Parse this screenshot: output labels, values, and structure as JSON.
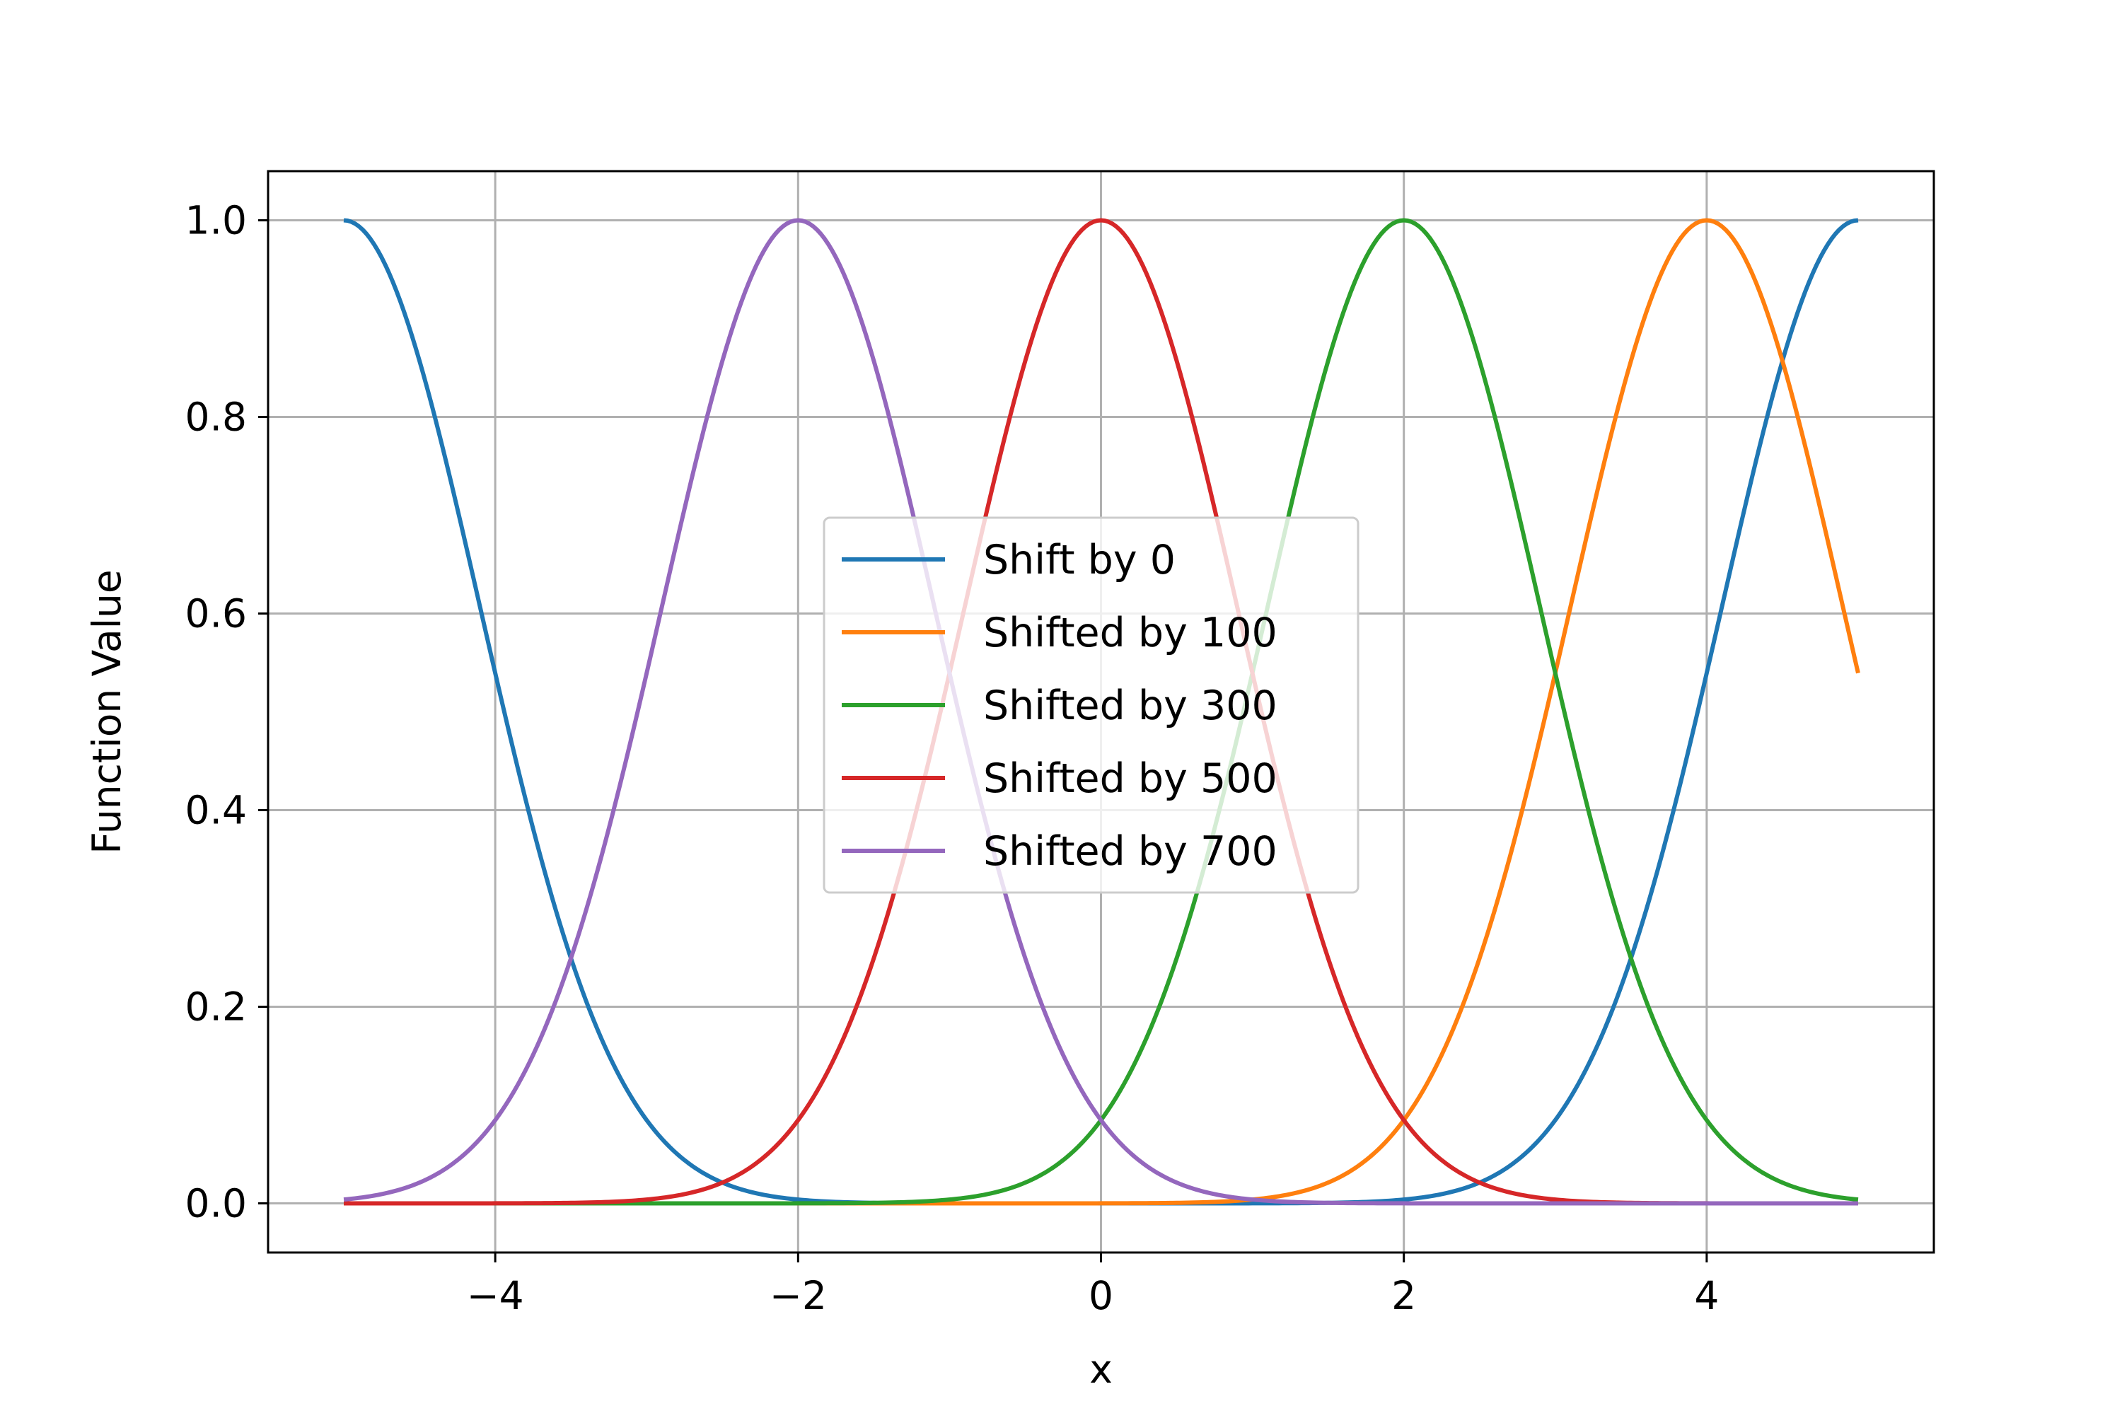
{
  "chart_data": {
    "type": "line",
    "title": "",
    "xlabel": "x",
    "ylabel": "Function Value",
    "xlim": [
      -5.5,
      5.5
    ],
    "ylim": [
      -0.05,
      1.05
    ],
    "xticks": [
      -4,
      -2,
      0,
      2,
      4
    ],
    "xtick_labels": [
      "−4",
      "−2",
      "0",
      "2",
      "4"
    ],
    "yticks": [
      0.0,
      0.2,
      0.4,
      0.6,
      0.8,
      1.0
    ],
    "ytick_labels": [
      "0.0",
      "0.2",
      "0.4",
      "0.6",
      "0.8",
      "1.0"
    ],
    "grid": true,
    "legend_position": "center",
    "x_range": [
      -5,
      5
    ],
    "series": [
      {
        "name": "Shift by 0",
        "color": "#1f77b4",
        "peaks_at": [
          -5,
          5
        ]
      },
      {
        "name": "Shifted by 100",
        "color": "#ff7f0e",
        "peaks_at": [
          4
        ]
      },
      {
        "name": "Shifted by 300",
        "color": "#2ca02c",
        "peaks_at": [
          2
        ]
      },
      {
        "name": "Shifted by 500",
        "color": "#d62728",
        "peaks_at": [
          0
        ]
      },
      {
        "name": "Shifted by 700",
        "color": "#9467bd",
        "peaks_at": [
          -2
        ]
      }
    ]
  }
}
